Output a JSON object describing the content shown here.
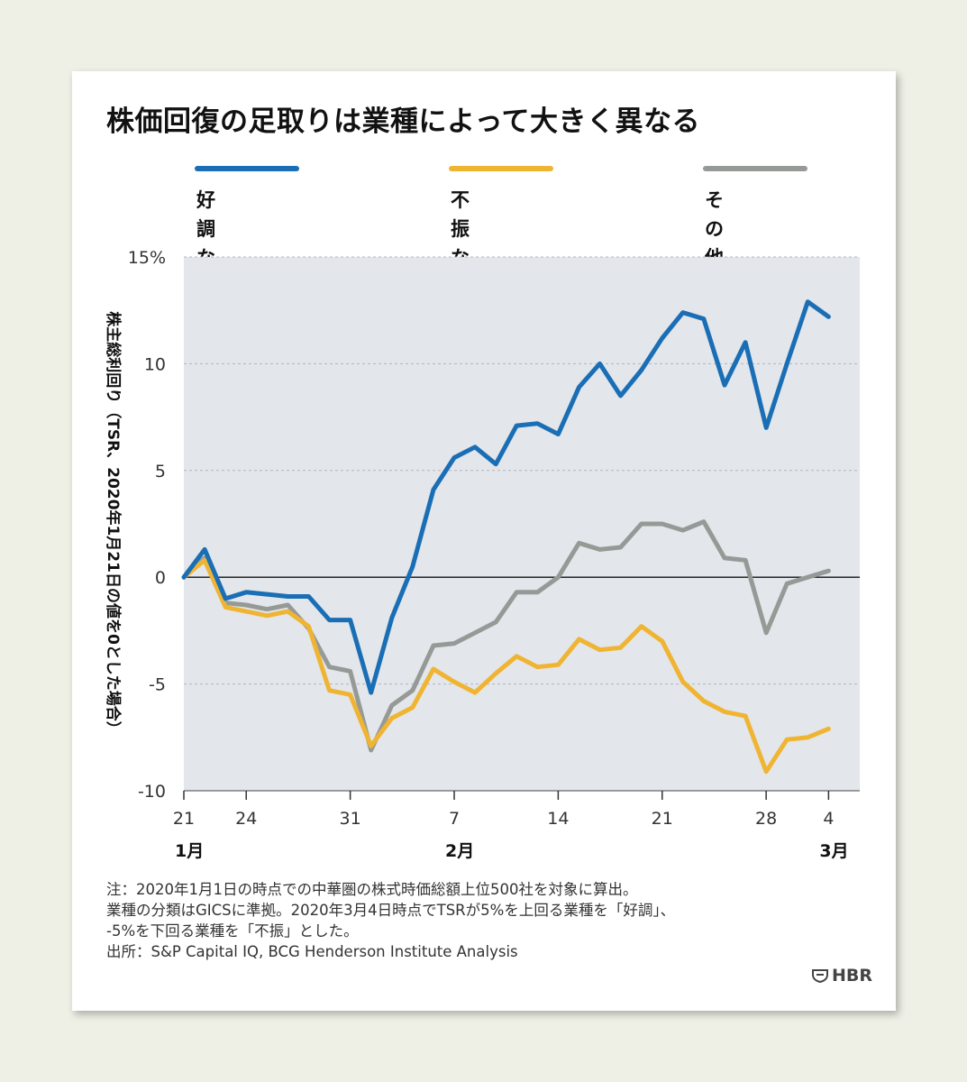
{
  "title": "株価回復の足取りは業種によって大きく異なる",
  "legend": [
    {
      "label": "好調な業種",
      "color": "#1a6eb5"
    },
    {
      "label": "不振な業種",
      "color": "#f0b433"
    },
    {
      "label": "その他の\nすべての業種",
      "color": "#959a97"
    }
  ],
  "chart_data": {
    "type": "line",
    "ylabel": "株主総利回り（TSR、2020年1月21日の値を0とした場合）",
    "ylim": [
      -10,
      15
    ],
    "yticks": [
      "15%",
      "10",
      "5",
      "0",
      "-5",
      "-10"
    ],
    "ytick_values": [
      15,
      10,
      5,
      0,
      -5,
      -10
    ],
    "xlim": [
      0,
      32.5
    ],
    "xticks": [
      {
        "label": "21",
        "x": 0
      },
      {
        "label": "24",
        "x": 3
      },
      {
        "label": "31",
        "x": 8
      },
      {
        "label": "7",
        "x": 13
      },
      {
        "label": "14",
        "x": 18
      },
      {
        "label": "21",
        "x": 23
      },
      {
        "label": "28",
        "x": 28
      },
      {
        "label": "4",
        "x": 31
      }
    ],
    "months": [
      {
        "label": "1月",
        "x": 0
      },
      {
        "label": "2月",
        "x": 13
      },
      {
        "label": "3月",
        "x": 31
      }
    ],
    "grid": true,
    "series": [
      {
        "name": "好調な業種",
        "color": "#1a6eb5",
        "x": [
          0,
          1,
          2,
          3,
          4,
          5,
          6,
          7,
          8,
          9,
          10,
          11,
          12,
          13,
          14,
          15,
          16,
          17,
          18,
          19,
          20,
          21,
          22,
          23,
          24,
          25,
          26,
          27,
          28,
          29,
          30,
          31
        ],
        "values": [
          0,
          1.3,
          -1,
          -0.7,
          -0.8,
          -0.9,
          -0.9,
          -2,
          -2,
          -5.4,
          -1.9,
          0.5,
          4.1,
          5.6,
          6.1,
          5.3,
          7.1,
          7.2,
          6.7,
          8.9,
          10,
          8.5,
          9.7,
          11.2,
          12.4,
          12.1,
          9,
          11,
          7,
          10,
          12.9,
          12.2
        ]
      },
      {
        "name": "不振な業種",
        "color": "#f0b433",
        "x": [
          0,
          1,
          2,
          3,
          4,
          5,
          6,
          7,
          8,
          9,
          10,
          11,
          12,
          13,
          14,
          15,
          16,
          17,
          18,
          19,
          20,
          21,
          22,
          23,
          24,
          25,
          26,
          27,
          28,
          29,
          30,
          31
        ],
        "values": [
          0,
          0.8,
          -1.4,
          -1.6,
          -1.8,
          -1.6,
          -2.3,
          -5.3,
          -5.5,
          -7.9,
          -6.6,
          -6.1,
          -4.3,
          -4.9,
          -5.4,
          -4.5,
          -3.7,
          -4.2,
          -4.1,
          -2.9,
          -3.4,
          -3.3,
          -2.3,
          -3,
          -4.9,
          -5.8,
          -6.3,
          -6.5,
          -9.1,
          -7.6,
          -7.5,
          -7.1
        ]
      },
      {
        "name": "その他のすべての業種",
        "color": "#959a97",
        "x": [
          0,
          1,
          2,
          3,
          4,
          5,
          6,
          7,
          8,
          9,
          10,
          11,
          12,
          13,
          14,
          15,
          16,
          17,
          18,
          19,
          20,
          21,
          22,
          23,
          24,
          25,
          26,
          27,
          28,
          29,
          30,
          31
        ],
        "values": [
          0,
          0.9,
          -1.2,
          -1.3,
          -1.5,
          -1.3,
          -2.4,
          -4.2,
          -4.4,
          -8.1,
          -6,
          -5.3,
          -3.2,
          -3.1,
          -2.6,
          -2.1,
          -0.7,
          -0.7,
          0,
          1.6,
          1.3,
          1.4,
          2.5,
          2.5,
          2.2,
          2.6,
          0.9,
          0.8,
          -2.6,
          -0.3,
          0,
          0.3
        ]
      }
    ]
  },
  "notes": [
    "注：2020年1月1日の時点での中華圏の株式時価総額上位500社を対象に算出。",
    "業種の分類はGICSに準拠。2020年3月4日時点でTSRが5%を上回る業種を「好調」、",
    "-5%を下回る業種を「不振」とした。",
    "出所：S&P Capital IQ, BCG Henderson Institute Analysis"
  ],
  "logo": "HBR"
}
